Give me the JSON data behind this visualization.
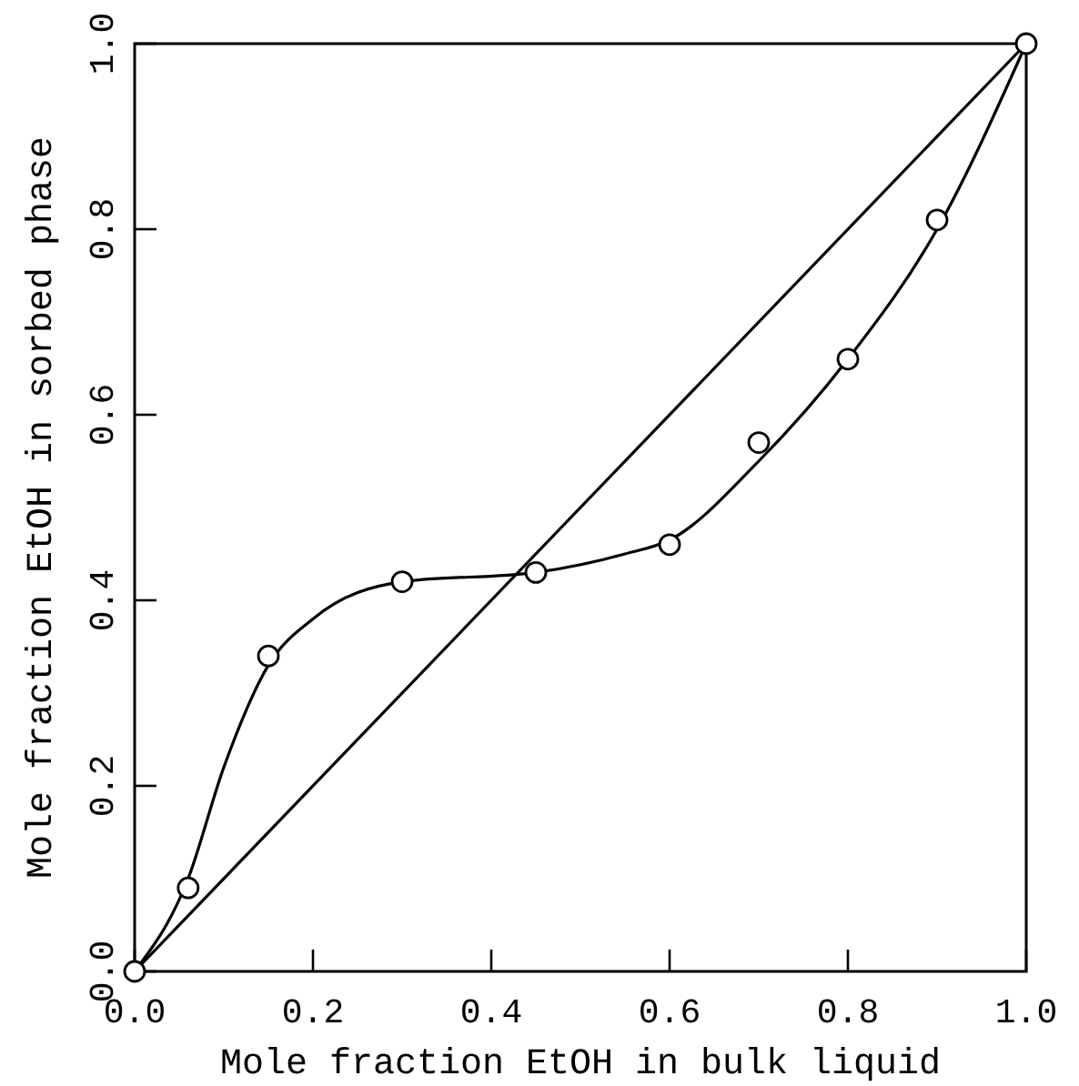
{
  "chart_data": {
    "type": "scatter",
    "xlabel": "Mole fraction EtOH in bulk liquid",
    "ylabel": "Mole fraction EtOH in sorbed phase",
    "xlim": [
      0,
      1
    ],
    "ylim": [
      0,
      1
    ],
    "xticks": [
      {
        "value": 0,
        "label": "0.0"
      },
      {
        "value": 0.2,
        "label": "0.2"
      },
      {
        "value": 0.4,
        "label": "0.4"
      },
      {
        "value": 0.6,
        "label": "0.6"
      },
      {
        "value": 0.8,
        "label": "0.8"
      },
      {
        "value": 1,
        "label": "1.0"
      }
    ],
    "yticks": [
      {
        "value": 0,
        "label": "0.0"
      },
      {
        "value": 0.2,
        "label": "0.2"
      },
      {
        "value": 0.4,
        "label": "0.4"
      },
      {
        "value": 0.6,
        "label": "0.6"
      },
      {
        "value": 0.8,
        "label": "0.8"
      },
      {
        "value": 1,
        "label": "1.0"
      }
    ],
    "grid": false,
    "series": [
      {
        "type": "line",
        "color": "#000000",
        "marker": "none",
        "line_style": "solid",
        "x": [
          0,
          1
        ],
        "values": [
          0,
          1
        ]
      },
      {
        "type": "line",
        "color": "#000000",
        "marker": "none",
        "line_style": "solid",
        "x": [
          0,
          0.06,
          0.1,
          0.15,
          0.2,
          0.3,
          0.45,
          0.55,
          0.6,
          0.7,
          0.8,
          0.9,
          1
        ],
        "values": [
          0,
          0.1,
          0.22,
          0.33,
          0.38,
          0.42,
          0.43,
          0.45,
          0.465,
          0.55,
          0.66,
          0.8,
          1
        ]
      },
      {
        "color": "#000000",
        "marker": "circle",
        "x": [
          0,
          0.06,
          0.15,
          0.3,
          0.45,
          0.6,
          0.7,
          0.8,
          0.9,
          1
        ],
        "values": [
          0,
          0.09,
          0.34,
          0.42,
          0.43,
          0.46,
          0.57,
          0.66,
          0.81,
          1
        ]
      }
    ]
  }
}
